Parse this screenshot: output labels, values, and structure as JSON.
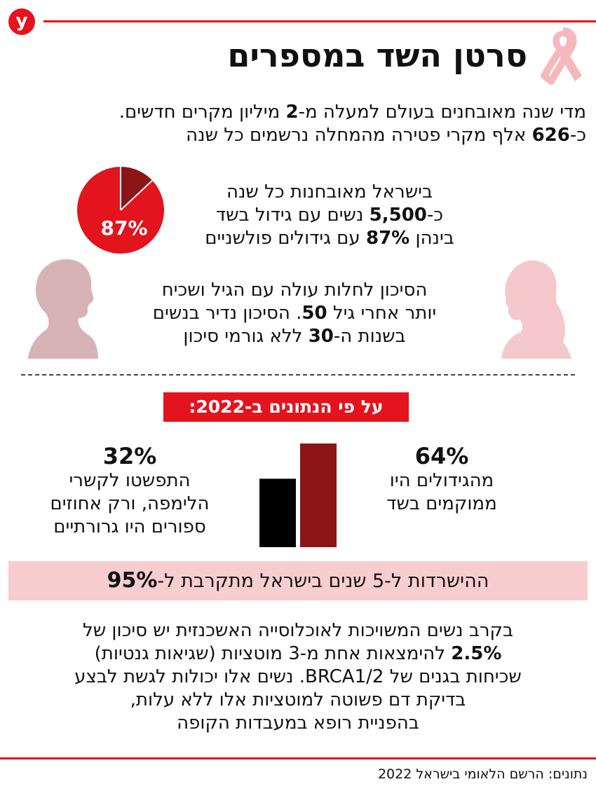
{
  "brand": {
    "logo_letter": "y",
    "accent_color": "#e3141d",
    "dark_red": "#8b1417",
    "pink": "#f7cdd0",
    "ribbon_color": "#f5b9bd"
  },
  "title": "סרטן השד במספרים",
  "intro": {
    "line1_a": "מדי שנה מאובחנים בעולם למעלה מ-",
    "line1_num": "2",
    "line1_b": " מיליון מקרים חדשים.",
    "line2_a": "כ-",
    "line2_num": "626",
    "line2_b": " אלף מקרי פטירה מהמחלה נרשמים כל שנה"
  },
  "israel": {
    "line1": "בישראל מאובחנות כל שנה",
    "line2_a": "כ-",
    "line2_num": "5,500",
    "line2_b": " נשים עם גידול בשד",
    "line3_a": "בינהן ",
    "line3_num": "87%",
    "line3_b": " עם גידולים פולשניים"
  },
  "pie": {
    "value": 87,
    "label": "87%"
  },
  "risk": {
    "line1": "הסיכון לחלות עולה עם הגיל ושכיח",
    "line2_a": "יותר אחרי גיל ",
    "line2_num": "50",
    "line2_b": ". הסיכון נדיר בנשים",
    "line3_a": "בשנות ה-",
    "line3_num": "30",
    "line3_b": " ללא גורמי סיכון"
  },
  "badge": "על פי הנתונים ב-2022:",
  "localized": {
    "pct": "64%",
    "value": 64,
    "line1": "מהגידולים היו",
    "line2": "ממוקמים בשד"
  },
  "spread": {
    "pct": "32%",
    "value": 32,
    "line1": "התפשטו לקשרי",
    "line2": "הלימפה, ורק אחוזים",
    "line3": "ספורים היו גרורתיים"
  },
  "survival": {
    "text": "ההישרדות ל-5 שנים בישראל מתקרבת ל-",
    "num": "95%"
  },
  "mutations": {
    "line1": "בקרב נשים המשויכות לאוכלוסייה האשכנזית יש סיכון של",
    "line2_num": "2.5%",
    "line2_b": " להימצאות אחת מ-3 מוטציות (שגיאות גנטיות)",
    "line3": "שכיחות בגנים של BRCA1/2. נשים אלו יכולות לגשת לבצע",
    "line4": "בדיקת דם פשוטה למוטציות אלו ללא עלות,",
    "line5": "בהפניית רופא במעבדות הקופה"
  },
  "source": "נתונים: הרשם הלאומי בישראל 2022"
}
